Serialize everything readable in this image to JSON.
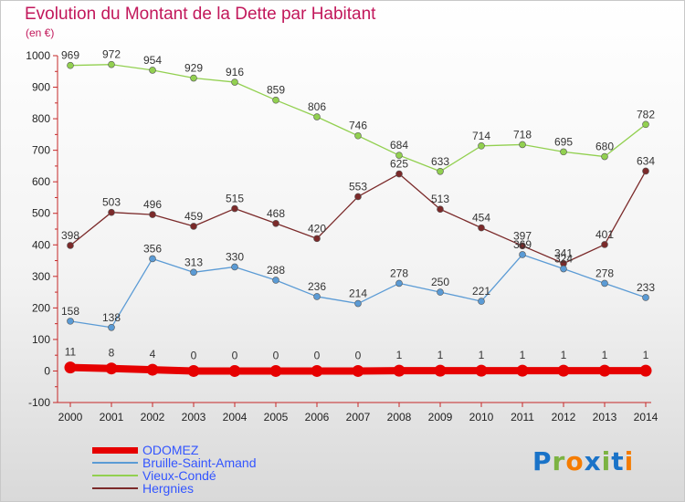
{
  "title": "Evolution du Montant de la Dette par Habitant",
  "subtitle": "(en €)",
  "logo": {
    "text": "Proxiti",
    "letter_colors": [
      "#1a73c8",
      "#7cb342",
      "#f57c00",
      "#1a73c8",
      "#7cb342",
      "#1a73c8",
      "#f57c00"
    ]
  },
  "colors": {
    "title": "#c2185b",
    "axis": "#c62828",
    "grid_tick": "#c62828"
  },
  "chart_data": {
    "type": "line",
    "x": [
      "2000",
      "2001",
      "2002",
      "2003",
      "2004",
      "2005",
      "2006",
      "2007",
      "2008",
      "2009",
      "2010",
      "2011",
      "2012",
      "2013",
      "2014"
    ],
    "ylim": [
      -100,
      1000
    ],
    "yticks": [
      -100,
      0,
      100,
      200,
      300,
      400,
      500,
      600,
      700,
      800,
      900,
      1000
    ],
    "legend_position": "bottom-left",
    "series": [
      {
        "name": "ODOMEZ",
        "color": "#e60000",
        "text_color": "#3355ff",
        "values": [
          11,
          8,
          4,
          0,
          0,
          0,
          0,
          0,
          1,
          1,
          1,
          1,
          1,
          1,
          1
        ],
        "labels": [
          "11",
          "8",
          "4",
          "0",
          "0",
          "0",
          "0",
          "0",
          "1",
          "1",
          "1",
          "1",
          "1",
          "1",
          "1"
        ]
      },
      {
        "name": "Bruille-Saint-Amand",
        "color": "#5b9bd5",
        "text_color": "#3355ff",
        "values": [
          158,
          138,
          356,
          313,
          330,
          288,
          236,
          214,
          278,
          250,
          221,
          369,
          324,
          278,
          233
        ],
        "labels": [
          "158",
          "138",
          "356",
          "313",
          "330",
          "288",
          "236",
          "214",
          "278",
          "250",
          "221",
          "369",
          "324",
          "278",
          "233"
        ]
      },
      {
        "name": "Vieux-Condé",
        "color": "#92d050",
        "text_color": "#3355ff",
        "values": [
          969,
          972,
          954,
          929,
          916,
          859,
          806,
          746,
          684,
          633,
          714,
          718,
          695,
          680,
          782
        ],
        "labels": [
          "969",
          "972",
          "954",
          "929",
          "916",
          "859",
          "806",
          "746",
          "684",
          "633",
          "714",
          "718",
          "695",
          "680",
          "782"
        ]
      },
      {
        "name": "Hergnies",
        "color": "#7b2a2a",
        "text_color": "#3355ff",
        "values": [
          398,
          503,
          496,
          459,
          515,
          468,
          420,
          553,
          625,
          513,
          454,
          397,
          341,
          401,
          634
        ],
        "labels": [
          "398",
          "503",
          "496",
          "459",
          "515",
          "468",
          "420",
          "553",
          "625",
          "513",
          "454",
          "397",
          "341",
          "401",
          "634"
        ]
      }
    ]
  }
}
